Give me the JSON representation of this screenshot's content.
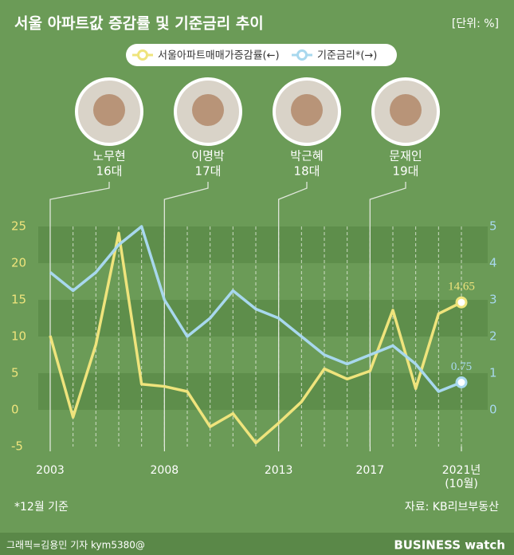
{
  "chart_data": {
    "type": "line",
    "title": "서울 아파트값 증감률 및 기준금리 추이",
    "unit": "[단위: %]",
    "footnote": "*12월 기준",
    "source": "자료: KB리브부동산",
    "credit": "그래픽=김용민 기자 kym5380@",
    "brand": "BUSINESS watch",
    "presidents": [
      {
        "name": "노무현",
        "term": "16대"
      },
      {
        "name": "이명박",
        "term": "17대"
      },
      {
        "name": "박근혜",
        "term": "18대"
      },
      {
        "name": "문재인",
        "term": "19대"
      }
    ],
    "x": [
      2003,
      2004,
      2005,
      2006,
      2007,
      2008,
      2009,
      2010,
      2011,
      2012,
      2013,
      2014,
      2015,
      2016,
      2017,
      2018,
      2019,
      2020,
      2021
    ],
    "xlim": [
      2003,
      2021
    ],
    "xticks": [
      2003,
      2008,
      2013,
      2017,
      {
        "value": 2021,
        "label": "2021년\n(10월)"
      }
    ],
    "ylim": [
      -5,
      25
    ],
    "yticks": [
      -5,
      0,
      5,
      10,
      15,
      20,
      25
    ],
    "y2lim": [
      -1,
      5
    ],
    "y2ticks": [
      0,
      1,
      2,
      3,
      4,
      5
    ],
    "series": [
      {
        "name": "서울아파트매매가증감률(←)",
        "color": "#efe47c",
        "values": [
          10.1,
          -1.0,
          8.9,
          24.1,
          3.5,
          3.2,
          2.5,
          -2.3,
          -0.5,
          -4.5,
          -1.8,
          1.1,
          5.6,
          4.2,
          5.3,
          13.6,
          2.9,
          13.1,
          14.65
        ]
      },
      {
        "name": "기준금리*(→)",
        "color": "#a8d8ee",
        "axis": "y2",
        "values": [
          3.75,
          3.25,
          3.75,
          4.5,
          5.0,
          3.0,
          2.0,
          2.5,
          3.25,
          2.75,
          2.5,
          2.0,
          1.5,
          1.25,
          1.5,
          1.75,
          1.25,
          0.5,
          0.75
        ]
      }
    ]
  }
}
